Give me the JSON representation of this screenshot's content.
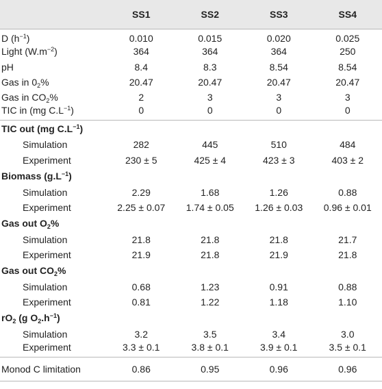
{
  "header": {
    "columns": [
      "",
      "SS1",
      "SS2",
      "SS3",
      "SS4"
    ]
  },
  "inputs": [
    {
      "label_main": "D (h",
      "label_sup": "−1",
      "label_tail": ")",
      "values": [
        "0.010",
        "0.015",
        "0.020",
        "0.025"
      ]
    },
    {
      "label_main": "Light (W.m",
      "label_sup": "−2",
      "label_tail": ")",
      "values": [
        "364",
        "364",
        "364",
        "250"
      ]
    },
    {
      "label_main": "pH",
      "label_sup": "",
      "label_tail": "",
      "values": [
        "8.4",
        "8.3",
        "8.54",
        "8.54"
      ]
    },
    {
      "label_main": "Gas in 0",
      "label_sub": "2",
      "label_tail": "%",
      "values": [
        "20.47",
        "20.47",
        "20.47",
        "20.47"
      ]
    },
    {
      "label_main": "Gas in CO",
      "label_sub": "2",
      "label_tail": "%",
      "values": [
        "2",
        "3",
        "3",
        "3"
      ]
    },
    {
      "label_main": "TIC in (mg C.L",
      "label_sup": "−1",
      "label_tail": ")",
      "values": [
        "0",
        "0",
        "0",
        "0"
      ]
    }
  ],
  "sections": [
    {
      "title_main": "TIC out (mg C.L",
      "title_sup": "−1",
      "title_sub": "",
      "title_tail": ")",
      "simulation_label": "Simulation",
      "simulation": [
        "282",
        "445",
        "510",
        "484"
      ],
      "experiment_label": "Experiment",
      "experiment": [
        "230 ± 5",
        "425 ± 4",
        "423 ± 3",
        "403 ± 2"
      ]
    },
    {
      "title_main": "Biomass (g.L",
      "title_sup": "−1",
      "title_sub": "",
      "title_tail": ")",
      "simulation_label": "Simulation",
      "simulation": [
        "2.29",
        "1.68",
        "1.26",
        "0.88"
      ],
      "experiment_label": "Experiment",
      "experiment": [
        "2.25 ± 0.07",
        "1.74 ± 0.05",
        "1.26 ± 0.03",
        "0.96 ± 0.01"
      ]
    },
    {
      "title_main": "Gas out O",
      "title_sup": "",
      "title_sub": "2",
      "title_tail": "%",
      "simulation_label": "Simulation",
      "simulation": [
        "21.8",
        "21.8",
        "21.8",
        "21.7"
      ],
      "experiment_label": "Experiment",
      "experiment": [
        "21.9",
        "21.8",
        "21.9",
        "21.8"
      ]
    },
    {
      "title_main": "Gas out CO",
      "title_sup": "",
      "title_sub": "2",
      "title_tail": "%",
      "simulation_label": "Simulation",
      "simulation": [
        "0.68",
        "1.23",
        "0.91",
        "0.88"
      ],
      "experiment_label": "Experiment",
      "experiment": [
        "0.81",
        "1.22",
        "1.18",
        "1.10"
      ]
    },
    {
      "title_main": "rO",
      "title_sub": "2",
      "title_mid": " (g O",
      "title_sub2": "2",
      "title_mid2": ".h",
      "title_sup": "−1",
      "title_tail": ")",
      "simulation_label": "Simulation",
      "simulation": [
        "3.2",
        "3.5",
        "3.4",
        "3.0"
      ],
      "experiment_label": "Experiment",
      "experiment": [
        "3.3 ± 0.1",
        "3.8 ± 0.1",
        "3.9 ± 0.1",
        "3.5 ± 0.1"
      ]
    }
  ],
  "footer": {
    "label": "Monod C limitation",
    "values": [
      "0.86",
      "0.95",
      "0.96",
      "0.96"
    ]
  }
}
